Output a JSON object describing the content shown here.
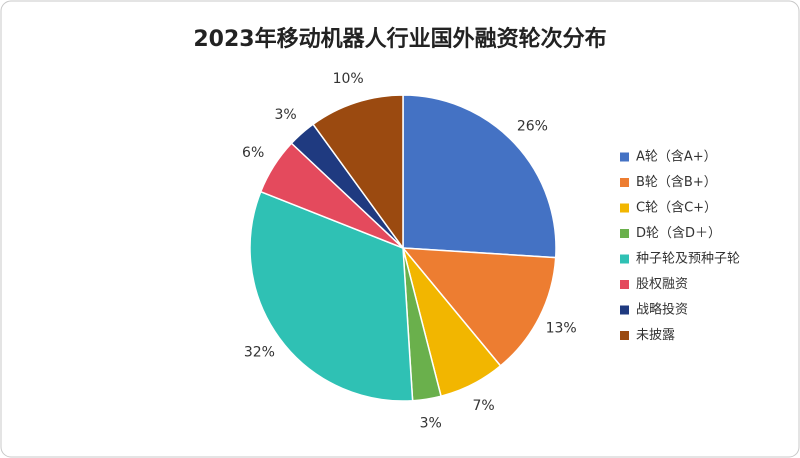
{
  "chart_data": {
    "type": "pie",
    "title": "2023年移动机器人行业国外融资轮次分布",
    "categories": [
      "A轮（含A+）",
      "B轮（含B+）",
      "C轮（含C+）",
      "D轮（含D＋）",
      "种子轮及预种子轮",
      "股权融资",
      "战略投资",
      "未披露"
    ],
    "values": [
      26,
      13,
      7,
      3,
      32,
      6,
      3,
      10
    ],
    "value_labels": [
      "26%",
      "13%",
      "7%",
      "3%",
      "32%",
      "6%",
      "3%",
      "10%"
    ],
    "colors": [
      "#4472c4",
      "#ed7d31",
      "#f2b600",
      "#6ab04c",
      "#2fc1b4",
      "#e44a5d",
      "#1f3a80",
      "#9b4a10"
    ],
    "legend": "right"
  }
}
